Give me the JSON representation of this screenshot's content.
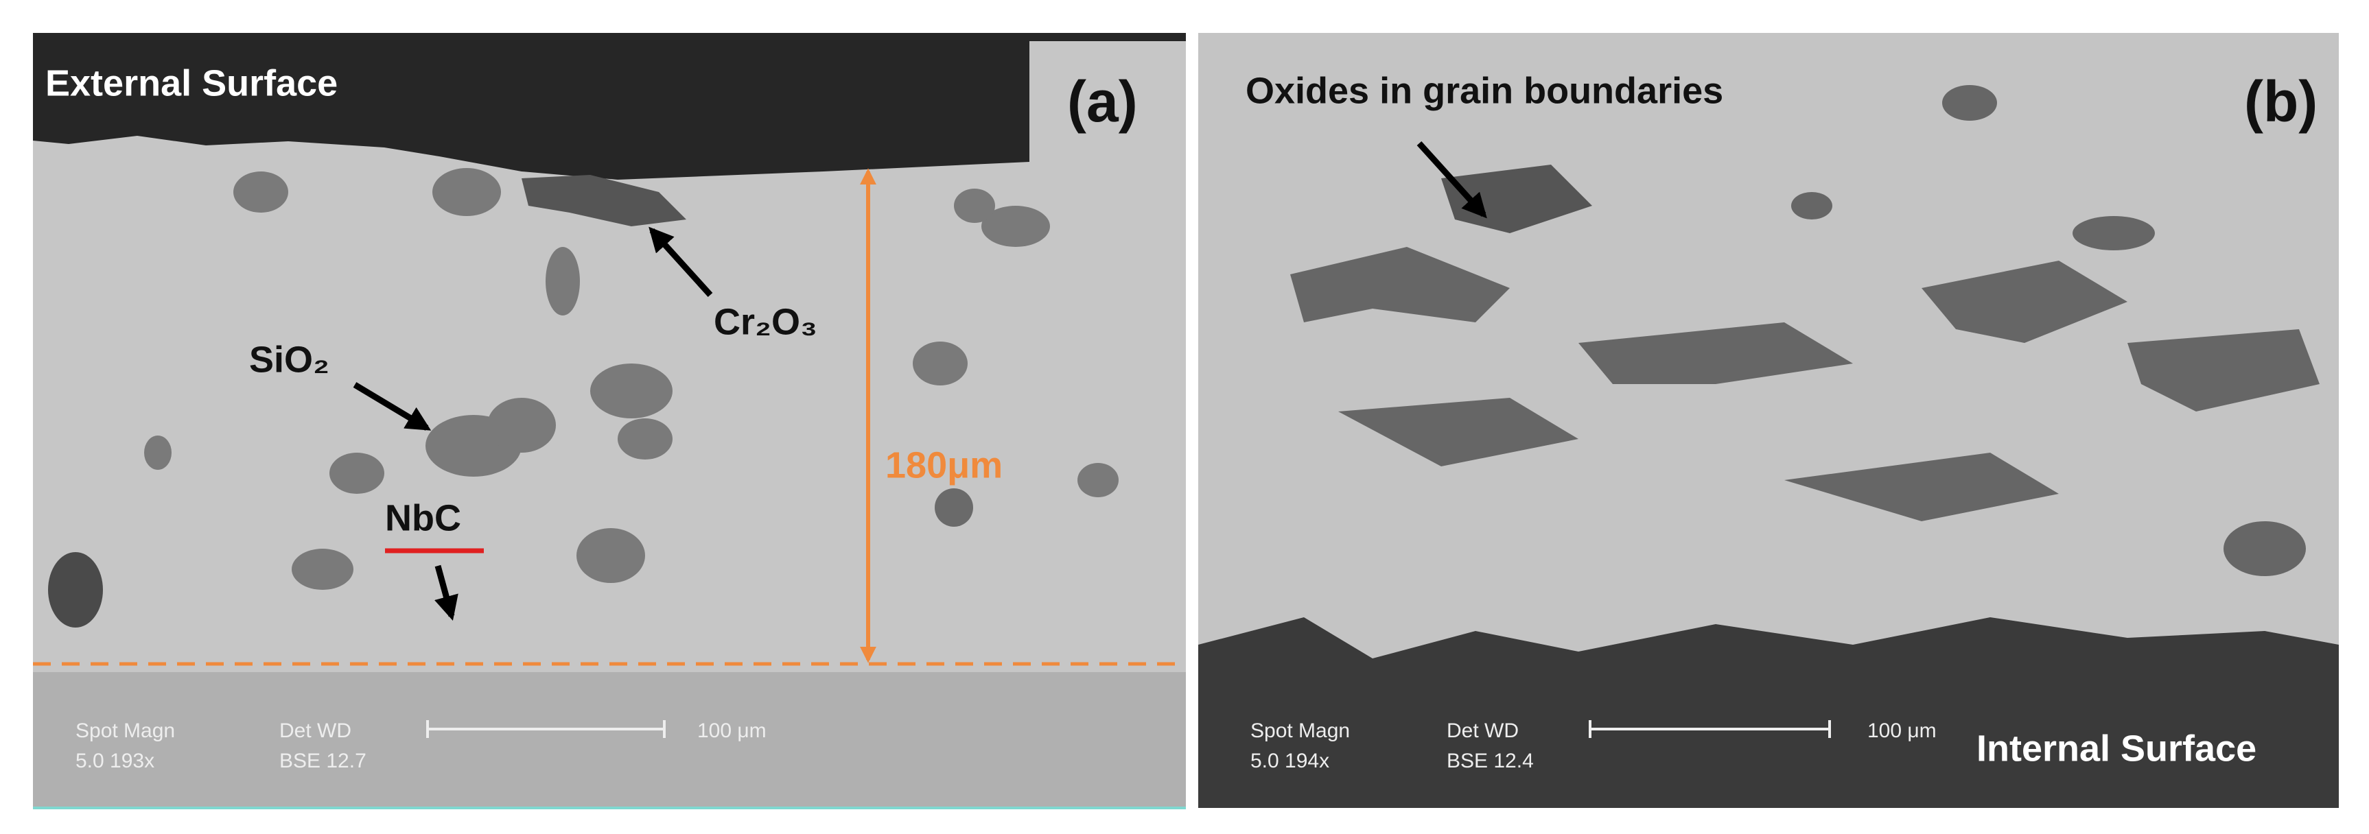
{
  "panels": [
    {
      "label": "(a)",
      "surface": "External Surface",
      "annotations": [
        "Cr₂O₃",
        "SiO₂",
        "NbC"
      ],
      "measurement": "180μm",
      "info": {
        "head1": "Spot Magn",
        "value1": "5.0   193x",
        "head2": "Det  WD",
        "value2": "BSE  12.7",
        "scale": "100 μm"
      }
    },
    {
      "label": "(b)",
      "surface": "Internal Surface",
      "annotations": [
        "Oxides in grain boundaries"
      ],
      "info": {
        "head1": "Spot Magn",
        "value1": "5.0   194x",
        "head2": "Det  WD",
        "value2": "BSE  12.4",
        "scale": "100 μm"
      }
    }
  ]
}
